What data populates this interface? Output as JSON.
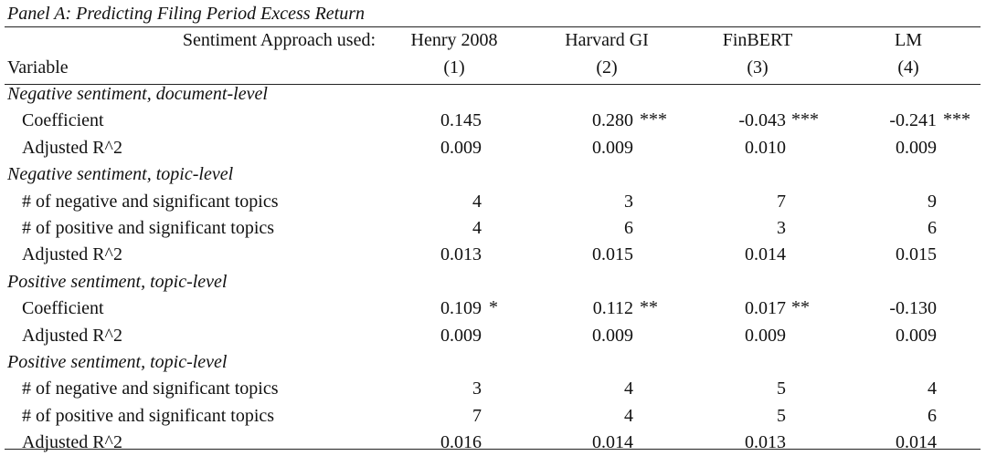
{
  "panel_title": "Panel A: Predicting Filing Period Excess Return",
  "header": {
    "approach_label": "Sentiment Approach used:",
    "variable_label": "Variable",
    "columns": [
      {
        "name": "Henry 2008",
        "num": "(1)"
      },
      {
        "name": "Harvard GI",
        "num": "(2)"
      },
      {
        "name": "FinBERT",
        "num": "(3)"
      },
      {
        "name": "LM",
        "num": "(4)"
      }
    ]
  },
  "sections": [
    {
      "title": "Negative sentiment, document-level",
      "rows": [
        {
          "label": "Coefficient",
          "values": [
            {
              "v": "0.145",
              "s": ""
            },
            {
              "v": "0.280",
              "s": "***"
            },
            {
              "v": "-0.043",
              "s": "***"
            },
            {
              "v": "-0.241",
              "s": "***"
            }
          ]
        },
        {
          "label": "Adjusted R^2",
          "values": [
            {
              "v": "0.009",
              "s": ""
            },
            {
              "v": "0.009",
              "s": ""
            },
            {
              "v": "0.010",
              "s": ""
            },
            {
              "v": "0.009",
              "s": ""
            }
          ]
        }
      ]
    },
    {
      "title": "Negative sentiment, topic-level",
      "rows": [
        {
          "label": "# of negative and significant topics",
          "values": [
            {
              "v": "4",
              "s": ""
            },
            {
              "v": "3",
              "s": ""
            },
            {
              "v": "7",
              "s": ""
            },
            {
              "v": "9",
              "s": ""
            }
          ]
        },
        {
          "label": "# of positive and significant topics",
          "values": [
            {
              "v": "4",
              "s": ""
            },
            {
              "v": "6",
              "s": ""
            },
            {
              "v": "3",
              "s": ""
            },
            {
              "v": "6",
              "s": ""
            }
          ]
        },
        {
          "label": "Adjusted R^2",
          "values": [
            {
              "v": "0.013",
              "s": ""
            },
            {
              "v": "0.015",
              "s": ""
            },
            {
              "v": "0.014",
              "s": ""
            },
            {
              "v": "0.015",
              "s": ""
            }
          ]
        }
      ]
    },
    {
      "title": "Positive sentiment, topic-level",
      "rows": [
        {
          "label": "Coefficient",
          "values": [
            {
              "v": "0.109",
              "s": "*"
            },
            {
              "v": "0.112",
              "s": "**"
            },
            {
              "v": "0.017",
              "s": "**"
            },
            {
              "v": "-0.130",
              "s": ""
            }
          ]
        },
        {
          "label": "Adjusted R^2",
          "values": [
            {
              "v": "0.009",
              "s": ""
            },
            {
              "v": "0.009",
              "s": ""
            },
            {
              "v": "0.009",
              "s": ""
            },
            {
              "v": "0.009",
              "s": ""
            }
          ]
        }
      ]
    },
    {
      "title": "Positive sentiment, topic-level",
      "rows": [
        {
          "label": "# of negative and significant topics",
          "values": [
            {
              "v": "3",
              "s": ""
            },
            {
              "v": "4",
              "s": ""
            },
            {
              "v": "5",
              "s": ""
            },
            {
              "v": "4",
              "s": ""
            }
          ]
        },
        {
          "label": "# of positive and significant topics",
          "values": [
            {
              "v": "7",
              "s": ""
            },
            {
              "v": "4",
              "s": ""
            },
            {
              "v": "5",
              "s": ""
            },
            {
              "v": "6",
              "s": ""
            }
          ]
        },
        {
          "label": "Adjusted R^2",
          "values": [
            {
              "v": "0.016",
              "s": ""
            },
            {
              "v": "0.014",
              "s": ""
            },
            {
              "v": "0.013",
              "s": ""
            },
            {
              "v": "0.014",
              "s": ""
            }
          ]
        }
      ]
    }
  ]
}
